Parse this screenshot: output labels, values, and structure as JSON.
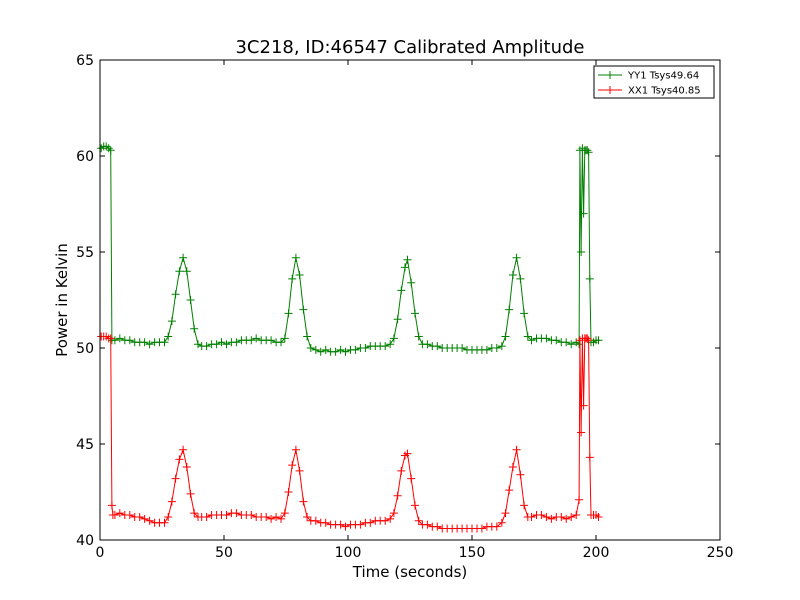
{
  "chart_data": {
    "type": "line",
    "title": "3C218, ID:46547 Calibrated Amplitude",
    "xlabel": "Time (seconds)",
    "ylabel": "Power in Kelvin",
    "xlim": [
      0,
      250
    ],
    "ylim": [
      40,
      65
    ],
    "xticks": [
      0,
      50,
      100,
      150,
      200,
      250
    ],
    "yticks": [
      40,
      45,
      50,
      55,
      60,
      65
    ],
    "xtick_labels": [
      "0",
      "50",
      "100",
      "150",
      "200",
      "250"
    ],
    "ytick_labels": [
      "40",
      "45",
      "50",
      "55",
      "60",
      "65"
    ],
    "grid": false,
    "legend_position": "top-right",
    "series": [
      {
        "name": "YY1 Tsys49.64",
        "color": "#008000",
        "marker": "+",
        "points": [
          [
            0.5,
            60.4
          ],
          [
            1.5,
            60.5
          ],
          [
            2.5,
            60.5
          ],
          [
            3.5,
            60.4
          ],
          [
            4.3,
            60.3
          ],
          [
            4.8,
            50.4
          ],
          [
            6,
            50.4
          ],
          [
            8,
            50.5
          ],
          [
            10,
            50.4
          ],
          [
            12,
            50.4
          ],
          [
            14,
            50.3
          ],
          [
            16,
            50.3
          ],
          [
            18,
            50.3
          ],
          [
            20,
            50.2
          ],
          [
            22,
            50.3
          ],
          [
            24,
            50.3
          ],
          [
            26,
            50.3
          ],
          [
            27.5,
            50.6
          ],
          [
            29,
            51.4
          ],
          [
            30.5,
            52.8
          ],
          [
            32,
            54.0
          ],
          [
            33.5,
            54.7
          ],
          [
            35,
            54.0
          ],
          [
            36.5,
            52.5
          ],
          [
            38,
            51.0
          ],
          [
            39.5,
            50.2
          ],
          [
            41,
            50.1
          ],
          [
            43,
            50.1
          ],
          [
            45,
            50.2
          ],
          [
            47,
            50.2
          ],
          [
            49,
            50.3
          ],
          [
            51,
            50.2
          ],
          [
            53,
            50.3
          ],
          [
            55,
            50.3
          ],
          [
            57,
            50.4
          ],
          [
            59,
            50.4
          ],
          [
            61,
            50.4
          ],
          [
            63,
            50.5
          ],
          [
            65,
            50.4
          ],
          [
            67,
            50.4
          ],
          [
            69,
            50.4
          ],
          [
            71,
            50.3
          ],
          [
            73,
            50.3
          ],
          [
            74.5,
            50.5
          ],
          [
            76,
            51.8
          ],
          [
            77.5,
            53.6
          ],
          [
            79,
            54.7
          ],
          [
            80.5,
            53.8
          ],
          [
            82,
            52.0
          ],
          [
            83.5,
            50.6
          ],
          [
            85,
            50.0
          ],
          [
            87,
            49.9
          ],
          [
            89,
            49.8
          ],
          [
            91,
            49.9
          ],
          [
            93,
            49.8
          ],
          [
            95,
            49.8
          ],
          [
            97,
            49.9
          ],
          [
            99,
            49.8
          ],
          [
            101,
            49.9
          ],
          [
            103,
            49.9
          ],
          [
            105,
            50.0
          ],
          [
            107,
            50.0
          ],
          [
            109,
            50.1
          ],
          [
            111,
            50.1
          ],
          [
            113,
            50.1
          ],
          [
            115,
            50.1
          ],
          [
            117,
            50.2
          ],
          [
            118.5,
            50.5
          ],
          [
            120,
            51.5
          ],
          [
            121.5,
            53.0
          ],
          [
            123,
            54.2
          ],
          [
            124,
            54.6
          ],
          [
            125.5,
            53.4
          ],
          [
            127,
            51.8
          ],
          [
            128.5,
            50.6
          ],
          [
            130,
            50.2
          ],
          [
            132,
            50.2
          ],
          [
            134,
            50.1
          ],
          [
            136,
            50.1
          ],
          [
            138,
            50.0
          ],
          [
            140,
            50.0
          ],
          [
            142,
            50.0
          ],
          [
            144,
            50.0
          ],
          [
            146,
            50.0
          ],
          [
            148,
            49.9
          ],
          [
            150,
            49.9
          ],
          [
            152,
            49.9
          ],
          [
            154,
            49.9
          ],
          [
            156,
            49.9
          ],
          [
            158,
            50.0
          ],
          [
            160,
            50.0
          ],
          [
            162,
            50.1
          ],
          [
            163.5,
            50.6
          ],
          [
            165,
            52.0
          ],
          [
            166.5,
            53.8
          ],
          [
            168,
            54.7
          ],
          [
            169.5,
            53.6
          ],
          [
            171,
            51.8
          ],
          [
            172.5,
            50.6
          ],
          [
            174,
            50.4
          ],
          [
            176,
            50.5
          ],
          [
            178,
            50.5
          ],
          [
            180,
            50.5
          ],
          [
            182,
            50.4
          ],
          [
            184,
            50.4
          ],
          [
            186,
            50.3
          ],
          [
            188,
            50.3
          ],
          [
            190,
            50.2
          ],
          [
            192,
            50.3
          ],
          [
            193.2,
            50.2
          ],
          [
            193.5,
            60.3
          ],
          [
            194,
            55.0
          ],
          [
            194.5,
            60.4
          ],
          [
            195,
            57.0
          ],
          [
            195.5,
            60.3
          ],
          [
            196,
            60.3
          ],
          [
            196.5,
            60.3
          ],
          [
            197,
            60.2
          ],
          [
            197.5,
            53.6
          ],
          [
            198,
            50.3
          ],
          [
            199,
            50.3
          ],
          [
            200,
            50.4
          ],
          [
            201,
            50.4
          ]
        ]
      },
      {
        "name": "XX1 Tsys40.85",
        "color": "#ff0000",
        "marker": "+",
        "points": [
          [
            0.5,
            50.6
          ],
          [
            1.5,
            50.6
          ],
          [
            2.5,
            50.6
          ],
          [
            3.5,
            50.5
          ],
          [
            4.3,
            50.5
          ],
          [
            4.8,
            41.8
          ],
          [
            5.2,
            41.3
          ],
          [
            6,
            41.3
          ],
          [
            8,
            41.4
          ],
          [
            10,
            41.3
          ],
          [
            12,
            41.3
          ],
          [
            14,
            41.2
          ],
          [
            16,
            41.2
          ],
          [
            18,
            41.1
          ],
          [
            20,
            41.0
          ],
          [
            22,
            40.9
          ],
          [
            24,
            40.9
          ],
          [
            26,
            40.9
          ],
          [
            27.5,
            41.2
          ],
          [
            29,
            42.0
          ],
          [
            30.5,
            43.2
          ],
          [
            32,
            44.2
          ],
          [
            33.5,
            44.7
          ],
          [
            35,
            43.8
          ],
          [
            36.5,
            42.4
          ],
          [
            38,
            41.4
          ],
          [
            39.5,
            41.2
          ],
          [
            41,
            41.2
          ],
          [
            43,
            41.2
          ],
          [
            45,
            41.3
          ],
          [
            47,
            41.3
          ],
          [
            49,
            41.3
          ],
          [
            51,
            41.3
          ],
          [
            53,
            41.4
          ],
          [
            55,
            41.4
          ],
          [
            57,
            41.3
          ],
          [
            59,
            41.3
          ],
          [
            61,
            41.3
          ],
          [
            63,
            41.2
          ],
          [
            65,
            41.2
          ],
          [
            67,
            41.2
          ],
          [
            69,
            41.1
          ],
          [
            71,
            41.2
          ],
          [
            73,
            41.1
          ],
          [
            74.5,
            41.4
          ],
          [
            76,
            42.5
          ],
          [
            77.5,
            43.9
          ],
          [
            79,
            44.7
          ],
          [
            80.5,
            43.6
          ],
          [
            82,
            42.0
          ],
          [
            83.5,
            41.2
          ],
          [
            85,
            41.0
          ],
          [
            87,
            41.0
          ],
          [
            89,
            40.9
          ],
          [
            91,
            40.9
          ],
          [
            93,
            40.8
          ],
          [
            95,
            40.8
          ],
          [
            97,
            40.8
          ],
          [
            99,
            40.7
          ],
          [
            101,
            40.8
          ],
          [
            103,
            40.8
          ],
          [
            105,
            40.8
          ],
          [
            107,
            40.9
          ],
          [
            109,
            40.9
          ],
          [
            111,
            41.0
          ],
          [
            113,
            41.0
          ],
          [
            115,
            41.0
          ],
          [
            117,
            41.1
          ],
          [
            118.5,
            41.4
          ],
          [
            120,
            42.3
          ],
          [
            121.5,
            43.6
          ],
          [
            123,
            44.4
          ],
          [
            124,
            44.5
          ],
          [
            125.5,
            43.2
          ],
          [
            127,
            41.8
          ],
          [
            128.5,
            41.0
          ],
          [
            130,
            40.8
          ],
          [
            132,
            40.8
          ],
          [
            134,
            40.7
          ],
          [
            136,
            40.7
          ],
          [
            138,
            40.6
          ],
          [
            140,
            40.6
          ],
          [
            142,
            40.6
          ],
          [
            144,
            40.6
          ],
          [
            146,
            40.6
          ],
          [
            148,
            40.6
          ],
          [
            150,
            40.6
          ],
          [
            152,
            40.6
          ],
          [
            154,
            40.6
          ],
          [
            156,
            40.7
          ],
          [
            158,
            40.7
          ],
          [
            160,
            40.7
          ],
          [
            162,
            40.9
          ],
          [
            163.5,
            41.4
          ],
          [
            165,
            42.6
          ],
          [
            166.5,
            43.8
          ],
          [
            168,
            44.7
          ],
          [
            169.5,
            43.4
          ],
          [
            171,
            41.8
          ],
          [
            172.5,
            41.2
          ],
          [
            174,
            41.2
          ],
          [
            176,
            41.3
          ],
          [
            178,
            41.3
          ],
          [
            180,
            41.2
          ],
          [
            182,
            41.1
          ],
          [
            184,
            41.2
          ],
          [
            186,
            41.2
          ],
          [
            188,
            41.1
          ],
          [
            190,
            41.2
          ],
          [
            192,
            41.3
          ],
          [
            193.2,
            42.1
          ],
          [
            193.5,
            50.4
          ],
          [
            194,
            45.6
          ],
          [
            194.5,
            50.5
          ],
          [
            195,
            47.0
          ],
          [
            195.5,
            50.5
          ],
          [
            196,
            50.5
          ],
          [
            196.5,
            50.5
          ],
          [
            197,
            50.4
          ],
          [
            197.5,
            44.3
          ],
          [
            198,
            41.3
          ],
          [
            199,
            41.3
          ],
          [
            200,
            41.3
          ],
          [
            201,
            41.2
          ]
        ]
      }
    ]
  }
}
